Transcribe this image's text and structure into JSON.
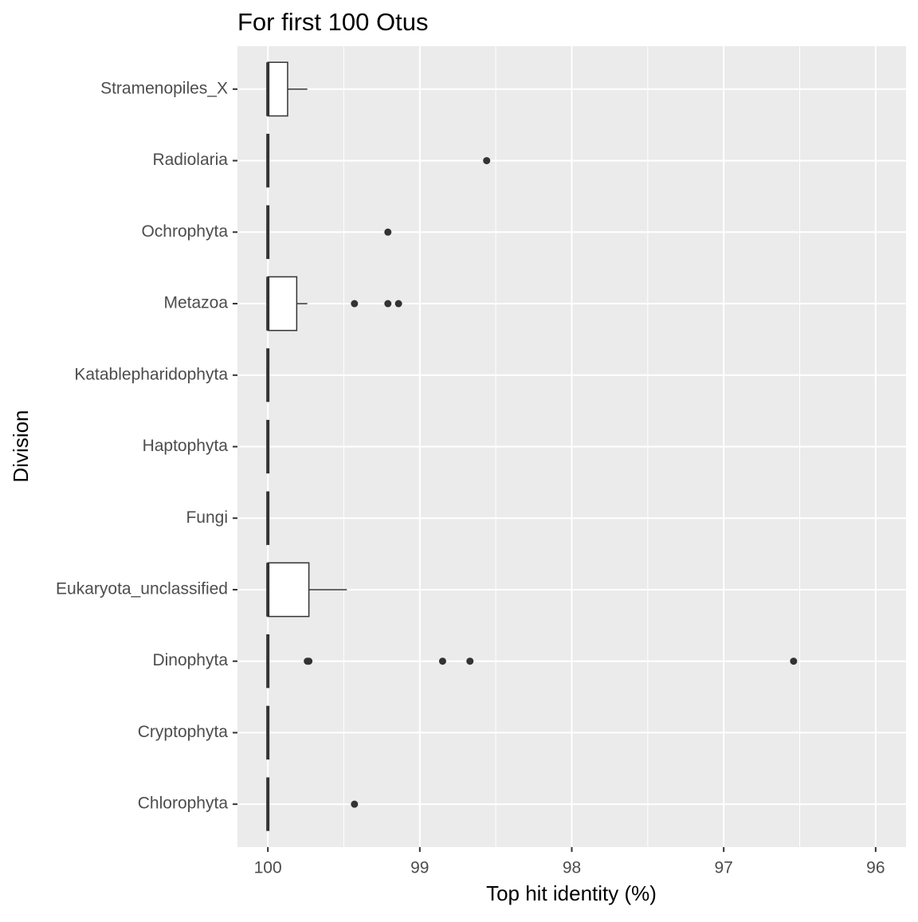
{
  "chart_data": {
    "type": "boxplot",
    "title": "For first 100 Otus",
    "x_label": "Top hit identity (%)",
    "y_label": "Division",
    "categories": [
      "Chlorophyta",
      "Cryptophyta",
      "Dinophyta",
      "Eukaryota_unclassified",
      "Fungi",
      "Haptophyta",
      "Katablepharidophyta",
      "Metazoa",
      "Ochrophyta",
      "Radiolaria",
      "Stramenopiles_X"
    ],
    "boxes": [
      {
        "min": 100,
        "q1": 100,
        "median": 100,
        "q3": 100,
        "max": 100,
        "outliers": [
          99.43
        ]
      },
      {
        "min": 100,
        "q1": 100,
        "median": 100,
        "q3": 100,
        "max": 100,
        "outliers": []
      },
      {
        "min": 100,
        "q1": 100,
        "median": 100,
        "q3": 100,
        "max": 100,
        "outliers": [
          99.74,
          99.73,
          98.85,
          98.67,
          96.54
        ]
      },
      {
        "min": 99.48,
        "q1": 99.73,
        "median": 100,
        "q3": 100,
        "max": 100,
        "outliers": []
      },
      {
        "min": 100,
        "q1": 100,
        "median": 100,
        "q3": 100,
        "max": 100,
        "outliers": []
      },
      {
        "min": 100,
        "q1": 100,
        "median": 100,
        "q3": 100,
        "max": 100,
        "outliers": []
      },
      {
        "min": 100,
        "q1": 100,
        "median": 100,
        "q3": 100,
        "max": 100,
        "outliers": []
      },
      {
        "min": 99.74,
        "q1": 99.81,
        "median": 100,
        "q3": 100,
        "max": 100,
        "outliers": [
          99.43,
          99.21,
          99.14
        ]
      },
      {
        "min": 100,
        "q1": 100,
        "median": 100,
        "q3": 100,
        "max": 100,
        "outliers": [
          99.21
        ]
      },
      {
        "min": 100,
        "q1": 100,
        "median": 100,
        "q3": 100,
        "max": 100,
        "outliers": [
          98.56
        ]
      },
      {
        "min": 99.74,
        "q1": 99.87,
        "median": 100,
        "q3": 100,
        "max": 100,
        "outliers": []
      }
    ],
    "xlim": [
      100.2,
      95.8
    ],
    "xticks": [
      100,
      99,
      98,
      97,
      96
    ],
    "xminorticks": [
      99.5,
      98.5,
      97.5,
      96.5
    ],
    "grid": true,
    "box_color": "#333333",
    "box_fill": "#ffffff",
    "panel_color": "#ebebeb"
  }
}
